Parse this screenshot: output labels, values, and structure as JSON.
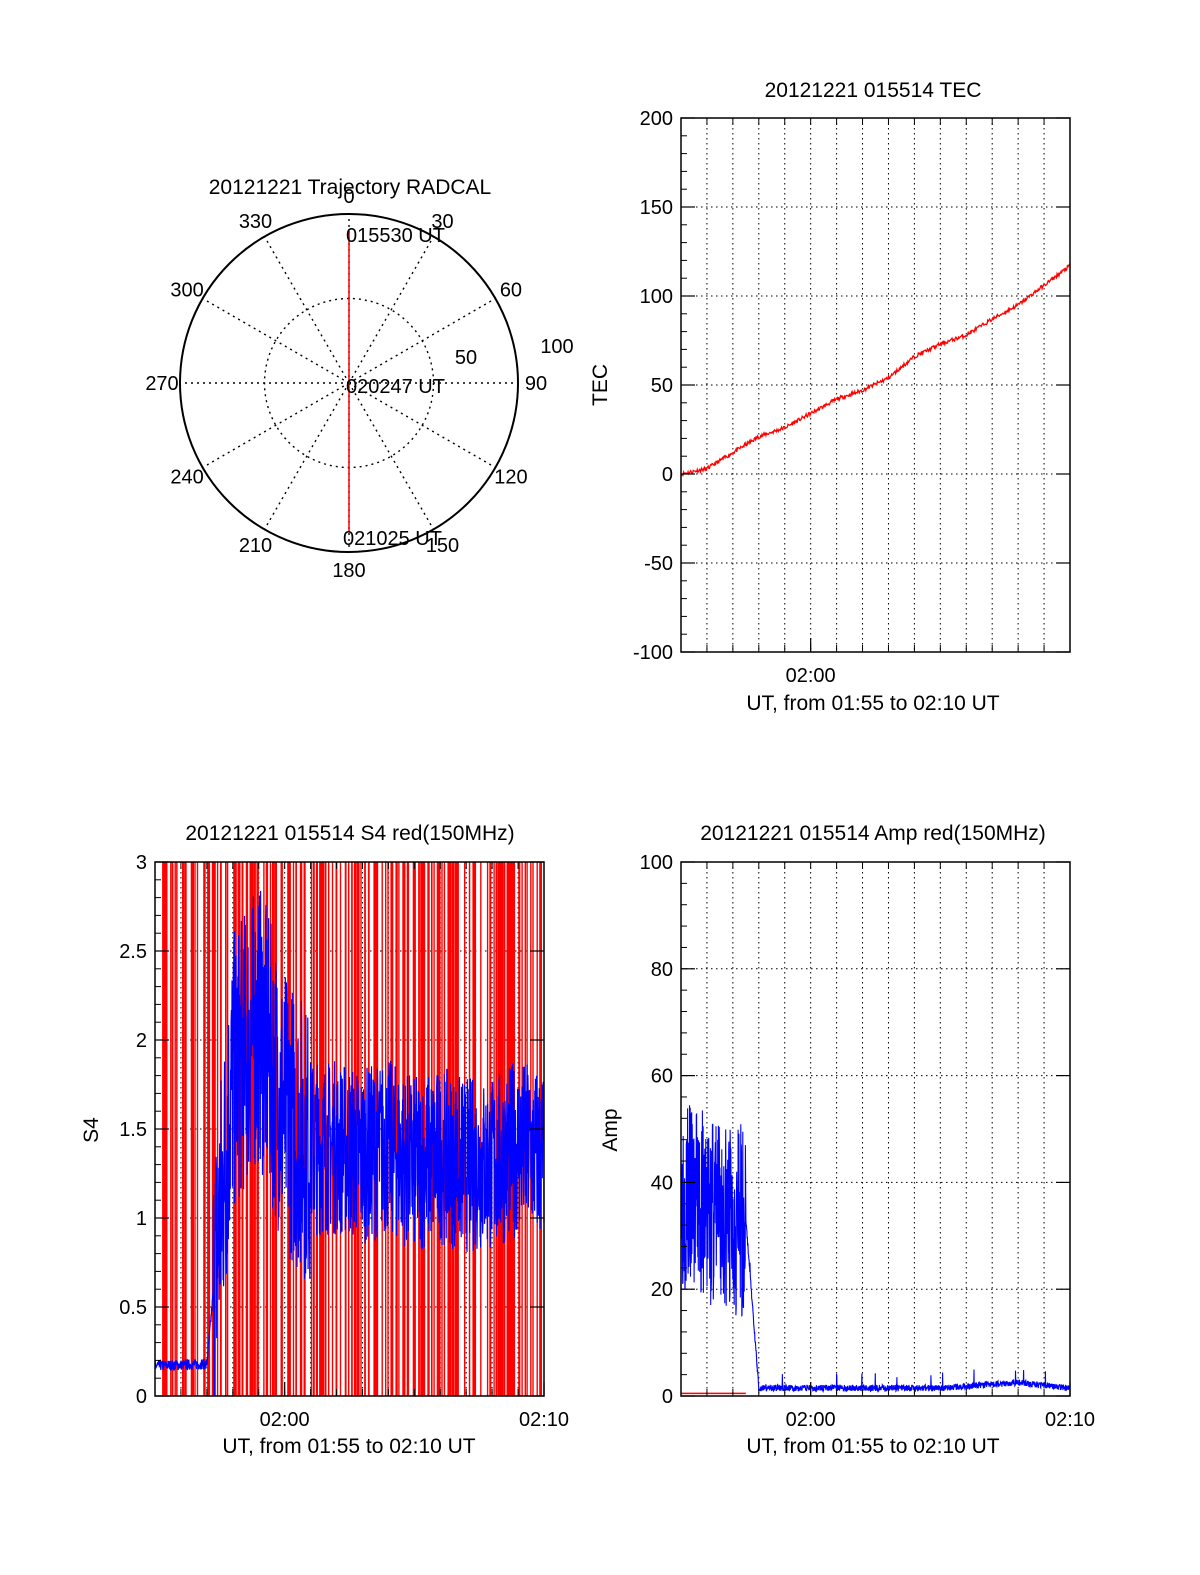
{
  "colors": {
    "red": "#ff0000",
    "blue": "#0000ff",
    "axis": "#000000",
    "grid": "#000000"
  },
  "chart_data": [
    {
      "type": "polar",
      "title": "20121221 Trajectory RADCAL",
      "angle_labels": [
        "0",
        "30",
        "60",
        "90",
        "120",
        "150",
        "180",
        "210",
        "240",
        "270",
        "300",
        "330"
      ],
      "radius_labels": [
        "50",
        "100"
      ],
      "radial_rings": [
        50,
        100
      ],
      "grid": true,
      "series": [
        {
          "color": "red",
          "points": [
            {
              "az": 0,
              "r": 90
            },
            {
              "az": 0,
              "r": 45
            },
            {
              "az": 0,
              "r": 0
            },
            {
              "az": 180,
              "r": 45
            },
            {
              "az": 180,
              "r": 88
            }
          ]
        }
      ],
      "annotations": [
        "015530 UT",
        "020247 UT",
        "021025 UT"
      ]
    },
    {
      "type": "line",
      "title": "20121221 015514 TEC",
      "xlabel": "UT, from 01:55 to 02:10 UT",
      "ylabel": "TEC",
      "xlim": [
        "01:55",
        "02:10"
      ],
      "ylim": [
        -100,
        200
      ],
      "yticks": [
        "-100",
        "-50",
        "0",
        "50",
        "100",
        "150",
        "200"
      ],
      "xtick_labels": [
        "02:00"
      ],
      "grid": true,
      "series": [
        {
          "color": "red",
          "x": [
            "01:55",
            "01:56",
            "01:57",
            "01:58",
            "01:59",
            "02:00",
            "02:01",
            "02:02",
            "02:03",
            "02:04",
            "02:05",
            "02:06",
            "02:07",
            "02:08",
            "02:09",
            "02:10"
          ],
          "values": [
            0,
            3,
            12,
            21,
            26,
            34,
            42,
            47,
            54,
            66,
            73,
            78,
            87,
            95,
            106,
            117
          ]
        }
      ]
    },
    {
      "type": "line",
      "title": "20121221 015514 S4 red(150MHz)",
      "xlabel": "UT, from 01:55 to 02:10 UT",
      "ylabel": "S4",
      "xlim": [
        "01:55",
        "02:10"
      ],
      "ylim": [
        0,
        3
      ],
      "yticks": [
        "0",
        "0.5",
        "1",
        "1.5",
        "2",
        "2.5",
        "3"
      ],
      "xtick_labels": [
        "02:00",
        "02:10"
      ],
      "grid": true,
      "series": [
        {
          "color": "red",
          "note_values": "dense spikes spanning 0 to 3 across the interval"
        },
        {
          "color": "blue",
          "x": [
            "01:55",
            "01:57",
            "01:58",
            "01:59",
            "02:00",
            "02:01",
            "02:02",
            "02:03",
            "02:04",
            "02:05",
            "02:06",
            "02:07",
            "02:08",
            "02:09",
            "02:10"
          ],
          "values": [
            0.17,
            0.18,
            1.8,
            2.1,
            1.6,
            1.4,
            1.4,
            1.35,
            1.4,
            1.3,
            1.35,
            1.3,
            1.3,
            1.4,
            1.35
          ]
        }
      ]
    },
    {
      "type": "line",
      "title": "20121221 015514 Amp red(150MHz)",
      "xlabel": "UT, from 01:55 to 02:10 UT",
      "ylabel": "Amp",
      "xlim": [
        "01:55",
        "02:10"
      ],
      "ylim": [
        0,
        100
      ],
      "yticks": [
        "0",
        "20",
        "40",
        "60",
        "80",
        "100"
      ],
      "xtick_labels": [
        "02:00",
        "02:10"
      ],
      "grid": true,
      "series": [
        {
          "color": "blue",
          "x": [
            "01:55",
            "01:56",
            "01:57",
            "01:57:30",
            "01:58",
            "02:00",
            "02:05",
            "02:08",
            "02:10"
          ],
          "values": [
            38,
            35,
            33,
            33,
            1.5,
            1.5,
            1.5,
            2.5,
            1.5
          ]
        },
        {
          "color": "red",
          "x": [
            "01:55",
            "01:57:30"
          ],
          "values": [
            0.5,
            0.5
          ]
        }
      ]
    }
  ]
}
